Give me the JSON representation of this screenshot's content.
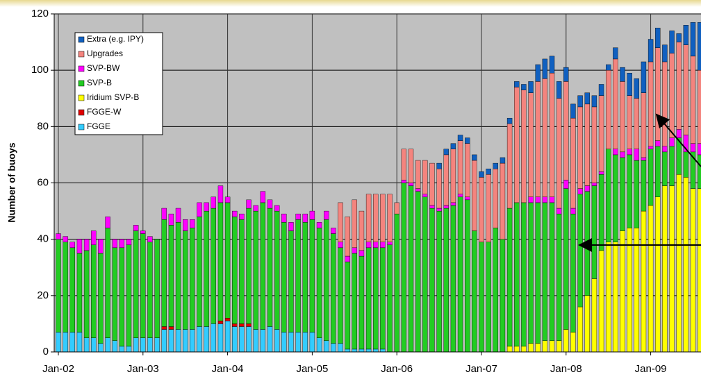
{
  "chart_data": {
    "type": "stacked_bar",
    "y_label": "Number of buoys",
    "categories": [
      "Jan-02",
      null,
      null,
      null,
      null,
      null,
      null,
      null,
      null,
      null,
      null,
      null,
      "Jan-03",
      null,
      null,
      null,
      null,
      null,
      null,
      null,
      null,
      null,
      null,
      null,
      "Jan-04",
      null,
      null,
      null,
      null,
      null,
      null,
      null,
      null,
      null,
      null,
      null,
      "Jan-05",
      null,
      null,
      null,
      null,
      null,
      null,
      null,
      null,
      null,
      null,
      null,
      "Jan-06",
      null,
      null,
      null,
      null,
      null,
      null,
      null,
      null,
      null,
      null,
      null,
      "Jan-07",
      null,
      null,
      null,
      null,
      null,
      null,
      null,
      null,
      null,
      null,
      null,
      "Jan-08",
      null,
      null,
      null,
      null,
      null,
      null,
      null,
      null,
      null,
      null,
      null,
      "Jan-09",
      null,
      null,
      null,
      null,
      null,
      null,
      null
    ],
    "series": [
      {
        "name": "FGGE",
        "color": "#33ccff",
        "values": [
          7,
          7,
          7,
          7,
          5,
          5,
          3,
          5,
          4,
          2,
          2,
          5,
          5,
          5,
          5,
          8,
          8,
          8,
          8,
          8,
          9,
          9,
          10,
          10,
          11,
          9,
          9,
          9,
          8,
          8,
          9,
          8,
          7,
          7,
          7,
          7,
          7,
          5,
          4,
          3,
          3,
          1,
          1,
          1,
          1,
          1,
          1,
          0,
          0,
          0,
          0,
          0,
          0,
          0,
          0,
          0,
          0,
          0,
          0,
          0,
          0,
          0,
          0,
          0,
          0,
          0,
          0,
          0,
          0,
          0,
          0,
          0,
          0,
          0,
          0,
          0,
          0,
          0,
          0,
          0,
          0,
          0,
          0,
          0,
          0,
          0,
          0,
          0,
          0,
          0,
          0,
          0
        ]
      },
      {
        "name": "FGGE-W",
        "color": "#e00000",
        "values": [
          0,
          0,
          0,
          0,
          0,
          0,
          0,
          0,
          0,
          0,
          0,
          0,
          0,
          0,
          0,
          1,
          1,
          0,
          0,
          0,
          0,
          0,
          0,
          1,
          1,
          1,
          1,
          1,
          0,
          0,
          0,
          0,
          0,
          0,
          0,
          0,
          0,
          0,
          0,
          0,
          0,
          0,
          0,
          0,
          0,
          0,
          0,
          0,
          0,
          0,
          0,
          0,
          0,
          0,
          0,
          0,
          0,
          0,
          0,
          0,
          0,
          0,
          0,
          0,
          0,
          0,
          0,
          0,
          0,
          0,
          0,
          0,
          0,
          0,
          0,
          0,
          0,
          0,
          0,
          0,
          0,
          0,
          0,
          0,
          0,
          0,
          0,
          0,
          0,
          0,
          0,
          0
        ]
      },
      {
        "name": "Iridium SVP-B",
        "color": "#ffff00",
        "values": [
          0,
          0,
          0,
          0,
          0,
          0,
          0,
          0,
          0,
          0,
          0,
          0,
          0,
          0,
          0,
          0,
          0,
          0,
          0,
          0,
          0,
          0,
          0,
          0,
          0,
          0,
          0,
          0,
          0,
          0,
          0,
          0,
          0,
          0,
          0,
          0,
          0,
          0,
          0,
          0,
          0,
          0,
          0,
          0,
          0,
          0,
          0,
          0,
          0,
          0,
          0,
          0,
          0,
          0,
          0,
          0,
          0,
          0,
          0,
          0,
          0,
          0,
          0,
          0,
          2,
          2,
          2,
          3,
          3,
          4,
          4,
          4,
          8,
          7,
          16,
          20,
          26,
          36,
          39,
          39,
          43,
          44,
          44,
          50,
          52,
          55,
          59,
          59,
          63,
          62,
          58,
          58
        ]
      },
      {
        "name": "SVP-B",
        "color": "#22cc22",
        "values": [
          33,
          32,
          30,
          28,
          31,
          33,
          32,
          39,
          33,
          35,
          36,
          38,
          37,
          34,
          35,
          38,
          36,
          38,
          35,
          36,
          39,
          41,
          41,
          42,
          41,
          38,
          37,
          41,
          42,
          45,
          42,
          42,
          39,
          36,
          40,
          39,
          40,
          39,
          43,
          39,
          34,
          31,
          34,
          33,
          36,
          36,
          36,
          38,
          49,
          60,
          59,
          57,
          55,
          51,
          50,
          51,
          52,
          55,
          54,
          43,
          39,
          39,
          44,
          40,
          49,
          51,
          51,
          50,
          50,
          49,
          49,
          45,
          50,
          42,
          40,
          37,
          33,
          27,
          33,
          31,
          26,
          26,
          24,
          18,
          20,
          18,
          12,
          14,
          13,
          9,
          13,
          12
        ]
      },
      {
        "name": "SVP-BW",
        "color": "#ff00ff",
        "values": [
          2,
          2,
          2,
          5,
          4,
          5,
          5,
          4,
          3,
          3,
          2,
          2,
          1,
          2,
          0,
          4,
          4,
          5,
          4,
          3,
          5,
          3,
          4,
          6,
          2,
          2,
          2,
          3,
          2,
          4,
          3,
          2,
          3,
          3,
          2,
          3,
          3,
          2,
          3,
          2,
          2,
          2,
          2,
          2,
          2,
          2,
          2,
          1,
          0,
          1,
          1,
          1,
          1,
          1,
          1,
          1,
          1,
          1,
          1,
          0,
          0,
          0,
          0,
          0,
          0,
          0,
          0,
          2,
          2,
          2,
          2,
          2,
          3,
          2,
          2,
          2,
          1,
          1,
          0,
          2,
          2,
          2,
          4,
          1,
          1,
          2,
          2,
          3,
          3,
          6,
          3,
          4
        ]
      },
      {
        "name": "Upgrades",
        "color": "#f4847e",
        "values": [
          0,
          0,
          0,
          0,
          0,
          0,
          0,
          0,
          0,
          0,
          0,
          0,
          0,
          0,
          0,
          0,
          0,
          0,
          0,
          0,
          0,
          0,
          0,
          0,
          0,
          0,
          0,
          0,
          0,
          0,
          0,
          0,
          0,
          0,
          0,
          0,
          0,
          0,
          0,
          0,
          14,
          14,
          17,
          14,
          17,
          17,
          17,
          17,
          4,
          11,
          12,
          10,
          12,
          15,
          14,
          18,
          19,
          19,
          19,
          25,
          23,
          24,
          21,
          27,
          30,
          41,
          40,
          37,
          41,
          42,
          44,
          39,
          35,
          32,
          29,
          29,
          27,
          27,
          28,
          32,
          25,
          19,
          18,
          23,
          30,
          33,
          30,
          30,
          31,
          32,
          31,
          26
        ]
      },
      {
        "name": "Extra (e.g. IPY)",
        "color": "#1060c0",
        "values": [
          0,
          0,
          0,
          0,
          0,
          0,
          0,
          0,
          0,
          0,
          0,
          0,
          0,
          0,
          0,
          0,
          0,
          0,
          0,
          0,
          0,
          0,
          0,
          0,
          0,
          0,
          0,
          0,
          0,
          0,
          0,
          0,
          0,
          0,
          0,
          0,
          0,
          0,
          0,
          0,
          0,
          0,
          0,
          0,
          0,
          0,
          0,
          0,
          0,
          0,
          0,
          0,
          0,
          0,
          2,
          2,
          2,
          2,
          2,
          2,
          2,
          2,
          2,
          2,
          2,
          2,
          2,
          4,
          6,
          7,
          6,
          6,
          5,
          5,
          4,
          4,
          4,
          4,
          2,
          4,
          5,
          8,
          7,
          11,
          8,
          7,
          6,
          8,
          3,
          7,
          12,
          17
        ]
      }
    ],
    "ylim": [
      0,
      120
    ],
    "yticks": [
      0,
      20,
      40,
      60,
      80,
      100,
      120
    ],
    "grid": true,
    "legend": "upper-left"
  }
}
